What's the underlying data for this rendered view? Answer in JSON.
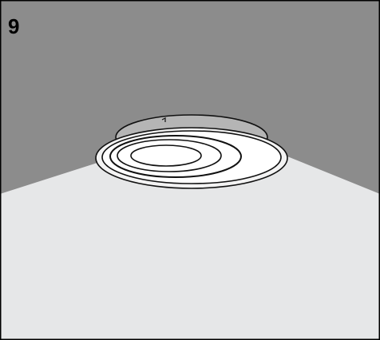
{
  "step": {
    "number": "9"
  }
}
